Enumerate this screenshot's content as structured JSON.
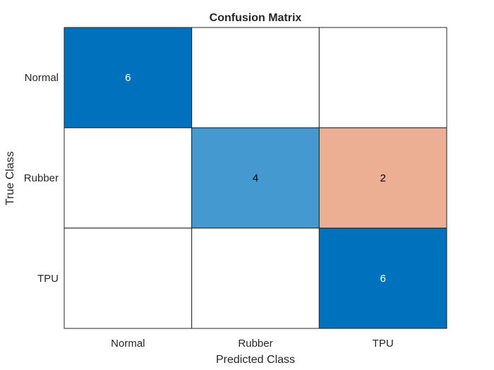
{
  "chart_data": {
    "type": "heatmap",
    "title": "Confusion Matrix",
    "xlabel": "Predicted Class",
    "ylabel": "True Class",
    "x_categories": [
      "Normal",
      "Rubber",
      "TPU"
    ],
    "y_categories": [
      "Normal",
      "Rubber",
      "TPU"
    ],
    "values": [
      [
        6,
        null,
        null
      ],
      [
        null,
        4,
        2
      ],
      [
        null,
        null,
        6
      ]
    ],
    "colors": {
      "correct_high": "#0072bd",
      "correct_mid": "#4499d1",
      "incorrect": "#ecaf94",
      "empty": "#ffffff",
      "grid": "#262626",
      "text_dark": "#000000",
      "text_light": "#ffffff"
    }
  }
}
